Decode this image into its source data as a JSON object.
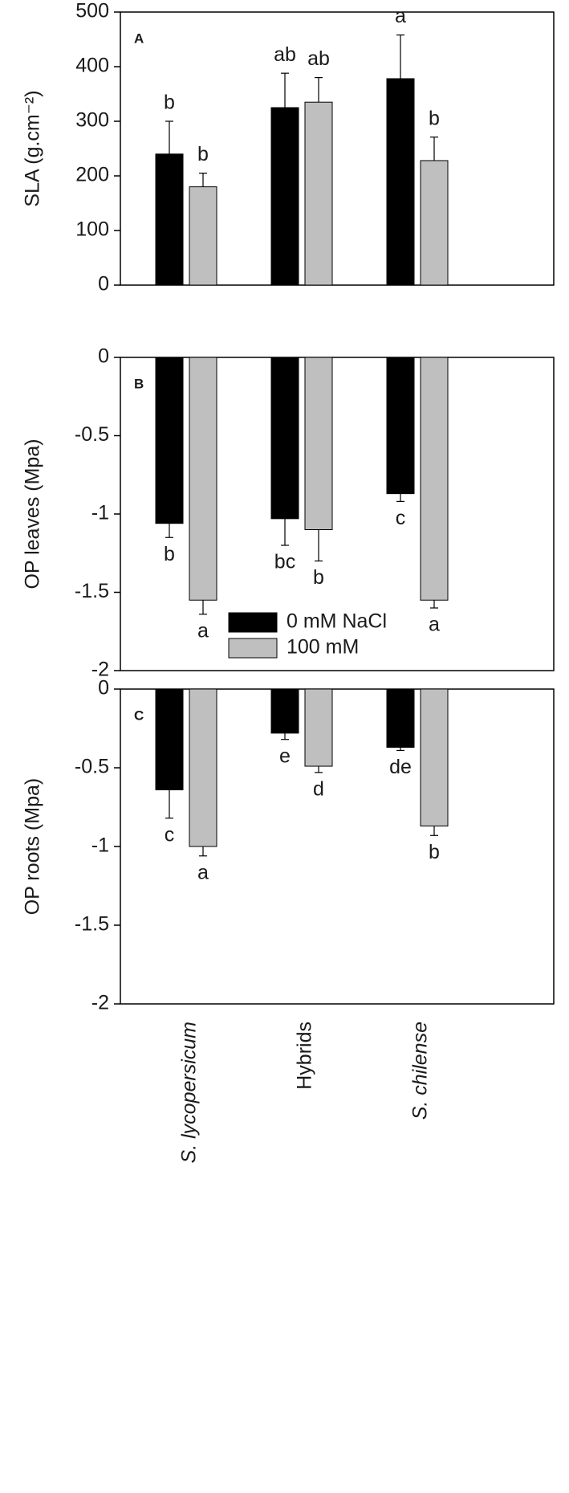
{
  "chart_data": [
    {
      "type": "bar",
      "panel": "A",
      "y_label": "SLA (g.cm⁻²)",
      "ylim": [
        0,
        500
      ],
      "yticks": [
        0,
        100,
        200,
        300,
        400,
        500
      ],
      "series": [
        {
          "color": "#000000",
          "values": [
            240,
            325,
            378
          ],
          "errors": [
            60,
            63,
            80
          ],
          "letters": [
            "b",
            "ab",
            "a"
          ]
        },
        {
          "color": "#bfbfbf",
          "values": [
            180,
            335,
            228
          ],
          "errors": [
            25,
            45,
            43
          ],
          "letters": [
            "b",
            "ab",
            "b"
          ]
        }
      ]
    },
    {
      "type": "bar",
      "panel": "B",
      "y_label": "OP leaves (Mpa)",
      "ylim": [
        -2,
        0
      ],
      "yticks": [
        0,
        -0.5,
        -1,
        -1.5,
        -2
      ],
      "series": [
        {
          "name": "0 mM NaCl",
          "color": "#000000",
          "values": [
            -1.06,
            -1.03,
            -0.87
          ],
          "errors": [
            0.09,
            0.17,
            0.05
          ],
          "letters": [
            "b",
            "bc",
            "c"
          ]
        },
        {
          "name": "100 mM",
          "color": "#bfbfbf",
          "values": [
            -1.55,
            -1.1,
            -1.55
          ],
          "errors": [
            0.09,
            0.2,
            0.05
          ],
          "letters": [
            "a",
            "b",
            "a"
          ]
        }
      ]
    },
    {
      "type": "bar",
      "panel": "C",
      "y_label": "OP roots (Mpa)",
      "ylim": [
        -2,
        0
      ],
      "yticks": [
        0,
        -0.5,
        -1,
        -1.5,
        -2
      ],
      "categories": [
        "S. lycopersicum",
        "Hybrids",
        "S. chilense"
      ],
      "series": [
        {
          "color": "#000000",
          "values": [
            -0.64,
            -0.28,
            -0.37
          ],
          "errors": [
            0.18,
            0.04,
            0.02
          ],
          "letters": [
            "c",
            "e",
            "de"
          ]
        },
        {
          "color": "#bfbfbf",
          "values": [
            -1.0,
            -0.49,
            -0.87
          ],
          "errors": [
            0.06,
            0.04,
            0.06
          ],
          "letters": [
            "a",
            "d",
            "b"
          ]
        }
      ]
    }
  ]
}
